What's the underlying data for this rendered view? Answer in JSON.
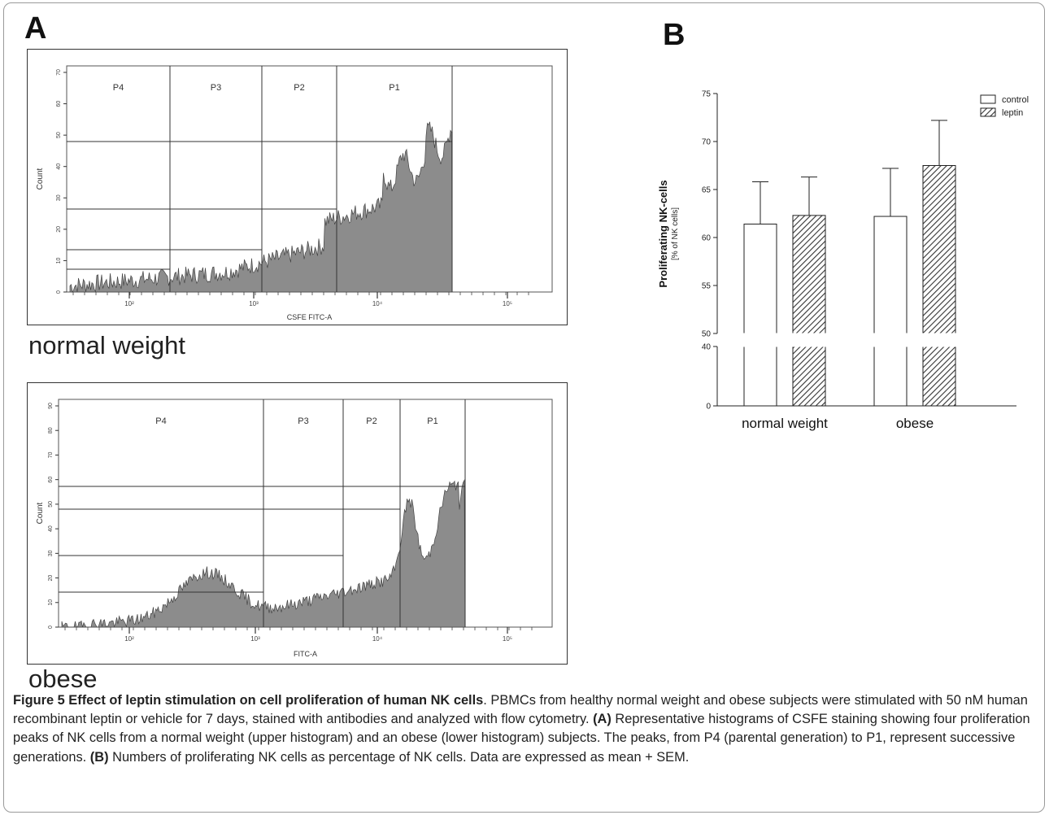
{
  "panel_labels": {
    "a": "A",
    "b": "B"
  },
  "histograms": {
    "normal": {
      "group_label": "normal weight",
      "xlabel": "CSFE FITC-A",
      "ylabel": "Count",
      "peaks": [
        "P4",
        "P3",
        "P2",
        "P1"
      ],
      "y_ticks": [
        "0",
        "10",
        "20",
        "30",
        "40",
        "50",
        "60",
        "70"
      ],
      "x_ticks": [
        "10²",
        "10³",
        "10⁴",
        "10⁵"
      ]
    },
    "obese": {
      "group_label": "obese",
      "xlabel": "FITC-A",
      "ylabel": "Count",
      "peaks": [
        "P4",
        "P3",
        "P2",
        "P1"
      ],
      "y_ticks": [
        "0",
        "10",
        "20",
        "30",
        "40",
        "50",
        "60",
        "70",
        "80",
        "90"
      ],
      "x_ticks": [
        "10²",
        "10³",
        "10⁴",
        "10⁵"
      ]
    }
  },
  "chart_data": {
    "type": "bar",
    "ylabel": "Proliferating NK-cells",
    "ylabel_sub": "[% of NK cells]",
    "categories": [
      "normal weight",
      "obese"
    ],
    "series": [
      {
        "name": "control",
        "values": [
          61.4,
          62.2
        ],
        "sem": [
          4.4,
          5.0
        ]
      },
      {
        "name": "leptin",
        "values": [
          62.3,
          67.5
        ],
        "sem": [
          4.0,
          4.7
        ]
      }
    ],
    "axis_break": [
      40,
      50
    ],
    "ylim": [
      0,
      75
    ],
    "y_ticks_upper": [
      50,
      55,
      60,
      65,
      70,
      75
    ],
    "y_ticks_lower": [
      0,
      40
    ],
    "legend_position": "top-right"
  },
  "caption": {
    "title": "Figure 5 Effect of leptin stimulation on cell proliferation of human NK cells",
    "text1": ". PBMCs from healthy normal weight and obese subjects were stimulated with 50 nM human recombinant leptin or vehicle for 7 days, stained with antibodies and analyzed with flow cytometry. ",
    "a_tag": "(A)",
    "text2": " Representative histograms of CSFE staining showing four proliferation peaks of NK cells from a normal weight (upper histogram) and an obese (lower histogram) subjects. The peaks, from P4 (parental generation) to P1, represent successive generations. ",
    "b_tag": "(B)",
    "text3": " Numbers of proliferating NK cells as percentage of NK cells. Data are expressed as mean + SEM."
  },
  "colors": {
    "histogram_fill": "#8c8c8c",
    "frame": "#9a9a9a"
  }
}
